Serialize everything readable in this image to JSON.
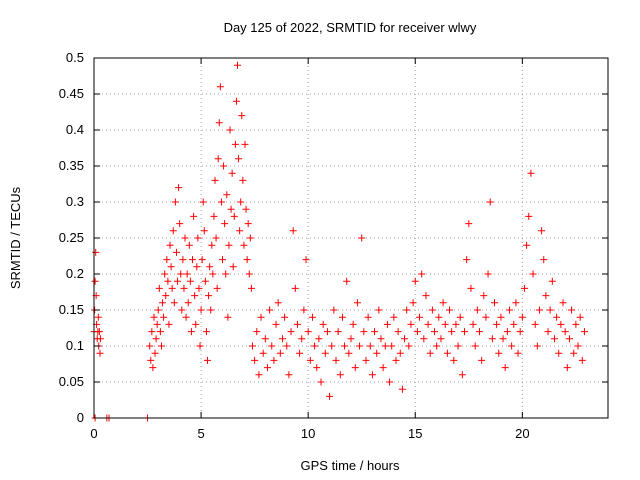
{
  "chart_data": {
    "type": "scatter",
    "title": "Day 125 of 2022, SRMTID for receiver wlwy",
    "xlabel": "GPS time / hours",
    "ylabel": "SRMTID / TECUs",
    "xlim": [
      0,
      24
    ],
    "ylim": [
      0,
      0.5
    ],
    "x_ticks": [
      0,
      5,
      10,
      15,
      20
    ],
    "x_tick_labels": [
      "0",
      "5",
      "10",
      "15",
      "20"
    ],
    "y_ticks": [
      0,
      0.05,
      0.1,
      0.15,
      0.2,
      0.25,
      0.3,
      0.35,
      0.4,
      0.45,
      0.5
    ],
    "y_tick_labels": [
      "0",
      "0.05",
      "0.1",
      "0.15",
      "0.2",
      "0.25",
      "0.3",
      "0.35",
      "0.4",
      "0.45",
      "0.5"
    ],
    "grid": true,
    "marker": "plus",
    "color": "#ff0000",
    "series": [
      {
        "name": "SRMTID",
        "points": [
          [
            0.0,
            0.12
          ],
          [
            0.03,
            0.15
          ],
          [
            0.05,
            0.19
          ],
          [
            0.08,
            0.23
          ],
          [
            0.1,
            0.17
          ],
          [
            0.12,
            0.13
          ],
          [
            0.15,
            0.11
          ],
          [
            0.18,
            0.12
          ],
          [
            0.2,
            0.14
          ],
          [
            0.22,
            0.1
          ],
          [
            0.25,
            0.12
          ],
          [
            0.28,
            0.09
          ],
          [
            0.3,
            0.11
          ],
          [
            0.05,
            0.0
          ],
          [
            0.6,
            0.0
          ],
          [
            0.7,
            0.0
          ],
          [
            2.5,
            0.0
          ],
          [
            2.6,
            0.1
          ],
          [
            2.65,
            0.08
          ],
          [
            2.7,
            0.12
          ],
          [
            2.75,
            0.07
          ],
          [
            2.8,
            0.14
          ],
          [
            2.85,
            0.09
          ],
          [
            2.9,
            0.11
          ],
          [
            2.95,
            0.13
          ],
          [
            3.0,
            0.15
          ],
          [
            3.05,
            0.18
          ],
          [
            3.1,
            0.12
          ],
          [
            3.15,
            0.1
          ],
          [
            3.2,
            0.16
          ],
          [
            3.25,
            0.14
          ],
          [
            3.3,
            0.2
          ],
          [
            3.35,
            0.17
          ],
          [
            3.4,
            0.22
          ],
          [
            3.45,
            0.19
          ],
          [
            3.5,
            0.13
          ],
          [
            3.55,
            0.24
          ],
          [
            3.6,
            0.21
          ],
          [
            3.65,
            0.18
          ],
          [
            3.7,
            0.26
          ],
          [
            3.75,
            0.16
          ],
          [
            3.8,
            0.3
          ],
          [
            3.85,
            0.23
          ],
          [
            3.9,
            0.19
          ],
          [
            3.95,
            0.32
          ],
          [
            4.0,
            0.27
          ],
          [
            4.05,
            0.2
          ],
          [
            4.1,
            0.15
          ],
          [
            4.15,
            0.22
          ],
          [
            4.2,
            0.18
          ],
          [
            4.25,
            0.25
          ],
          [
            4.3,
            0.14
          ],
          [
            4.35,
            0.2
          ],
          [
            4.4,
            0.16
          ],
          [
            4.45,
            0.24
          ],
          [
            4.5,
            0.19
          ],
          [
            4.55,
            0.12
          ],
          [
            4.6,
            0.22
          ],
          [
            4.65,
            0.28
          ],
          [
            4.7,
            0.17
          ],
          [
            4.75,
            0.13
          ],
          [
            4.8,
            0.21
          ],
          [
            4.85,
            0.25
          ],
          [
            4.9,
            0.18
          ],
          [
            4.95,
            0.1
          ],
          [
            5.0,
            0.15
          ],
          [
            5.05,
            0.22
          ],
          [
            5.1,
            0.3
          ],
          [
            5.15,
            0.26
          ],
          [
            5.2,
            0.19
          ],
          [
            5.25,
            0.12
          ],
          [
            5.3,
            0.08
          ],
          [
            5.35,
            0.17
          ],
          [
            5.4,
            0.21
          ],
          [
            5.45,
            0.15
          ],
          [
            5.5,
            0.24
          ],
          [
            5.55,
            0.2
          ],
          [
            5.6,
            0.28
          ],
          [
            5.65,
            0.33
          ],
          [
            5.7,
            0.25
          ],
          [
            5.75,
            0.18
          ],
          [
            5.8,
            0.36
          ],
          [
            5.85,
            0.41
          ],
          [
            5.9,
            0.46
          ],
          [
            5.95,
            0.3
          ],
          [
            6.0,
            0.22
          ],
          [
            6.05,
            0.35
          ],
          [
            6.1,
            0.27
          ],
          [
            6.15,
            0.2
          ],
          [
            6.2,
            0.31
          ],
          [
            6.25,
            0.14
          ],
          [
            6.3,
            0.24
          ],
          [
            6.35,
            0.4
          ],
          [
            6.4,
            0.29
          ],
          [
            6.45,
            0.34
          ],
          [
            6.5,
            0.21
          ],
          [
            6.55,
            0.28
          ],
          [
            6.6,
            0.38
          ],
          [
            6.65,
            0.44
          ],
          [
            6.7,
            0.49
          ],
          [
            6.75,
            0.36
          ],
          [
            6.8,
            0.26
          ],
          [
            6.85,
            0.3
          ],
          [
            6.9,
            0.42
          ],
          [
            6.95,
            0.33
          ],
          [
            7.0,
            0.24
          ],
          [
            7.05,
            0.38
          ],
          [
            7.1,
            0.29
          ],
          [
            7.15,
            0.22
          ],
          [
            7.2,
            0.27
          ],
          [
            7.25,
            0.2
          ],
          [
            7.3,
            0.25
          ],
          [
            7.35,
            0.18
          ],
          [
            7.4,
            0.1
          ],
          [
            7.5,
            0.08
          ],
          [
            7.6,
            0.12
          ],
          [
            7.7,
            0.06
          ],
          [
            7.8,
            0.14
          ],
          [
            7.9,
            0.09
          ],
          [
            8.0,
            0.11
          ],
          [
            8.1,
            0.07
          ],
          [
            8.2,
            0.15
          ],
          [
            8.3,
            0.1
          ],
          [
            8.4,
            0.08
          ],
          [
            8.5,
            0.13
          ],
          [
            8.6,
            0.16
          ],
          [
            8.7,
            0.09
          ],
          [
            8.8,
            0.11
          ],
          [
            8.9,
            0.14
          ],
          [
            9.0,
            0.1
          ],
          [
            9.1,
            0.06
          ],
          [
            9.2,
            0.12
          ],
          [
            9.3,
            0.26
          ],
          [
            9.4,
            0.18
          ],
          [
            9.5,
            0.13
          ],
          [
            9.6,
            0.09
          ],
          [
            9.7,
            0.11
          ],
          [
            9.8,
            0.15
          ],
          [
            9.9,
            0.22
          ],
          [
            10.0,
            0.12
          ],
          [
            10.1,
            0.08
          ],
          [
            10.2,
            0.14
          ],
          [
            10.3,
            0.1
          ],
          [
            10.4,
            0.07
          ],
          [
            10.5,
            0.11
          ],
          [
            10.6,
            0.05
          ],
          [
            10.7,
            0.13
          ],
          [
            10.8,
            0.09
          ],
          [
            10.9,
            0.12
          ],
          [
            11.0,
            0.03
          ],
          [
            11.1,
            0.1
          ],
          [
            11.2,
            0.15
          ],
          [
            11.3,
            0.08
          ],
          [
            11.4,
            0.12
          ],
          [
            11.5,
            0.06
          ],
          [
            11.6,
            0.14
          ],
          [
            11.7,
            0.1
          ],
          [
            11.8,
            0.19
          ],
          [
            11.9,
            0.09
          ],
          [
            12.0,
            0.11
          ],
          [
            12.1,
            0.13
          ],
          [
            12.2,
            0.07
          ],
          [
            12.3,
            0.16
          ],
          [
            12.4,
            0.1
          ],
          [
            12.5,
            0.25
          ],
          [
            12.6,
            0.12
          ],
          [
            12.7,
            0.08
          ],
          [
            12.8,
            0.14
          ],
          [
            12.9,
            0.1
          ],
          [
            13.0,
            0.06
          ],
          [
            13.1,
            0.12
          ],
          [
            13.2,
            0.09
          ],
          [
            13.3,
            0.15
          ],
          [
            13.4,
            0.11
          ],
          [
            13.5,
            0.07
          ],
          [
            13.6,
            0.1
          ],
          [
            13.7,
            0.13
          ],
          [
            13.8,
            0.05
          ],
          [
            13.9,
            0.1
          ],
          [
            14.0,
            0.14
          ],
          [
            14.1,
            0.08
          ],
          [
            14.2,
            0.12
          ],
          [
            14.3,
            0.09
          ],
          [
            14.4,
            0.04
          ],
          [
            14.5,
            0.11
          ],
          [
            14.6,
            0.15
          ],
          [
            14.7,
            0.1
          ],
          [
            14.8,
            0.13
          ],
          [
            14.9,
            0.16
          ],
          [
            15.0,
            0.19
          ],
          [
            15.1,
            0.12
          ],
          [
            15.2,
            0.14
          ],
          [
            15.3,
            0.2
          ],
          [
            15.4,
            0.11
          ],
          [
            15.5,
            0.17
          ],
          [
            15.6,
            0.13
          ],
          [
            15.7,
            0.09
          ],
          [
            15.8,
            0.15
          ],
          [
            15.9,
            0.12
          ],
          [
            16.0,
            0.1
          ],
          [
            16.1,
            0.14
          ],
          [
            16.2,
            0.11
          ],
          [
            16.3,
            0.16
          ],
          [
            16.4,
            0.13
          ],
          [
            16.5,
            0.09
          ],
          [
            16.6,
            0.15
          ],
          [
            16.7,
            0.12
          ],
          [
            16.8,
            0.08
          ],
          [
            16.9,
            0.13
          ],
          [
            17.0,
            0.1
          ],
          [
            17.1,
            0.14
          ],
          [
            17.2,
            0.06
          ],
          [
            17.3,
            0.12
          ],
          [
            17.4,
            0.22
          ],
          [
            17.5,
            0.27
          ],
          [
            17.6,
            0.18
          ],
          [
            17.7,
            0.13
          ],
          [
            17.8,
            0.1
          ],
          [
            17.9,
            0.15
          ],
          [
            18.0,
            0.12
          ],
          [
            18.1,
            0.08
          ],
          [
            18.2,
            0.17
          ],
          [
            18.3,
            0.14
          ],
          [
            18.4,
            0.2
          ],
          [
            18.5,
            0.3
          ],
          [
            18.6,
            0.11
          ],
          [
            18.7,
            0.16
          ],
          [
            18.8,
            0.13
          ],
          [
            18.9,
            0.09
          ],
          [
            19.0,
            0.14
          ],
          [
            19.1,
            0.11
          ],
          [
            19.2,
            0.07
          ],
          [
            19.3,
            0.12
          ],
          [
            19.4,
            0.15
          ],
          [
            19.5,
            0.1
          ],
          [
            19.6,
            0.13
          ],
          [
            19.7,
            0.16
          ],
          [
            19.8,
            0.09
          ],
          [
            19.9,
            0.12
          ],
          [
            20.0,
            0.14
          ],
          [
            20.1,
            0.18
          ],
          [
            20.2,
            0.24
          ],
          [
            20.3,
            0.28
          ],
          [
            20.4,
            0.34
          ],
          [
            20.5,
            0.2
          ],
          [
            20.6,
            0.13
          ],
          [
            20.7,
            0.1
          ],
          [
            20.8,
            0.15
          ],
          [
            20.9,
            0.26
          ],
          [
            21.0,
            0.22
          ],
          [
            21.1,
            0.17
          ],
          [
            21.2,
            0.12
          ],
          [
            21.3,
            0.15
          ],
          [
            21.4,
            0.19
          ],
          [
            21.5,
            0.11
          ],
          [
            21.6,
            0.14
          ],
          [
            21.7,
            0.09
          ],
          [
            21.8,
            0.13
          ],
          [
            21.9,
            0.16
          ],
          [
            22.0,
            0.12
          ],
          [
            22.1,
            0.07
          ],
          [
            22.2,
            0.11
          ],
          [
            22.3,
            0.15
          ],
          [
            22.4,
            0.09
          ],
          [
            22.5,
            0.13
          ],
          [
            22.6,
            0.1
          ],
          [
            22.7,
            0.14
          ],
          [
            22.8,
            0.08
          ],
          [
            22.9,
            0.12
          ]
        ]
      }
    ]
  }
}
